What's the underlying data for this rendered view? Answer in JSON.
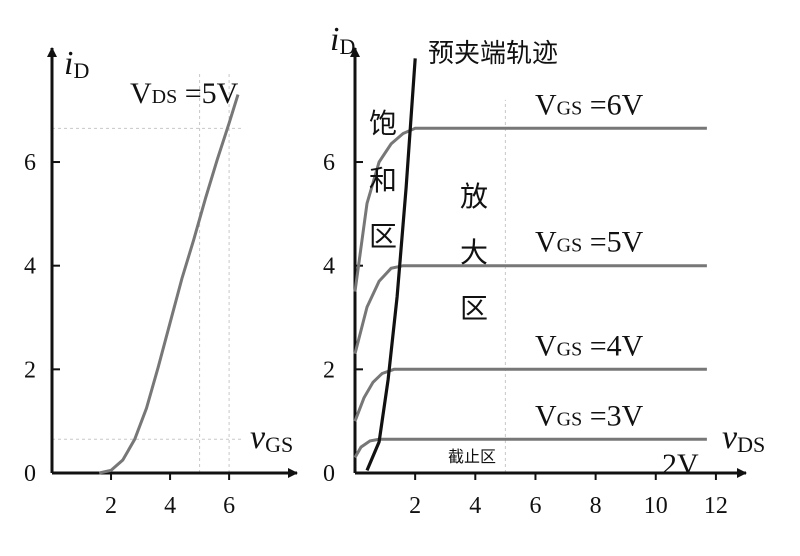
{
  "colors": {
    "axis": "#111111",
    "curve": "#777777",
    "locus": "#111111",
    "guide": "#c8c8c8"
  },
  "chart_data": [
    {
      "type": "line",
      "title": "",
      "xlabel": {
        "main": "v",
        "sub": "GS"
      },
      "ylabel": {
        "main": "i",
        "sub": "D"
      },
      "x_ticks": [
        "2",
        "4",
        "6"
      ],
      "y_ticks": [
        "0",
        "2",
        "4",
        "6"
      ],
      "xlim": [
        0,
        8.3
      ],
      "ylim": [
        0,
        8.2
      ],
      "grid": false,
      "series": [
        {
          "name": "",
          "x": [
            1.6,
            2.0,
            2.4,
            2.8,
            3.2,
            3.6,
            4.0,
            4.4,
            4.8,
            5.2,
            5.6,
            6.0,
            6.3
          ],
          "y": [
            0.0,
            0.05,
            0.25,
            0.65,
            1.25,
            2.05,
            2.9,
            3.75,
            4.5,
            5.3,
            6.05,
            6.75,
            7.3
          ]
        }
      ],
      "annotations": {
        "vds": {
          "main": "V",
          "sub": "DS",
          "rest": " =5V"
        }
      },
      "guides": {
        "x": [
          5,
          6
        ],
        "y": [
          0.65,
          6.65
        ]
      }
    },
    {
      "type": "line",
      "title": "",
      "xlabel": {
        "main": "v",
        "sub": "DS"
      },
      "ylabel": {
        "main": "i",
        "sub": "D"
      },
      "x_ticks": [
        "2",
        "4",
        "6",
        "8",
        "10",
        "12"
      ],
      "y_ticks": [
        "0",
        "2",
        "4",
        "6"
      ],
      "xlim": [
        0,
        13
      ],
      "ylim": [
        0,
        8.2
      ],
      "grid": false,
      "series": [
        {
          "name": "VGS=6V",
          "label": {
            "main": "V",
            "sub": "GS",
            "rest": " =6V"
          },
          "x": [
            0.0,
            0.4,
            0.8,
            1.2,
            1.6,
            2.0,
            11.7
          ],
          "y": [
            3.5,
            5.2,
            6.0,
            6.35,
            6.55,
            6.65,
            6.65
          ]
        },
        {
          "name": "VGS=5V",
          "label": {
            "main": "V",
            "sub": "GS",
            "rest": " =5V"
          },
          "x": [
            0.0,
            0.4,
            0.8,
            1.2,
            1.6,
            11.7
          ],
          "y": [
            2.3,
            3.2,
            3.7,
            3.95,
            4.0,
            4.0
          ]
        },
        {
          "name": "VGS=4V",
          "label": {
            "main": "V",
            "sub": "GS",
            "rest": " =4V"
          },
          "x": [
            0.0,
            0.3,
            0.6,
            0.9,
            1.3,
            11.7
          ],
          "y": [
            1.0,
            1.45,
            1.75,
            1.92,
            2.0,
            2.0
          ]
        },
        {
          "name": "VGS=3V",
          "label": {
            "main": "V",
            "sub": "GS",
            "rest": " =3V"
          },
          "x": [
            0.0,
            0.2,
            0.5,
            0.8,
            11.7
          ],
          "y": [
            0.3,
            0.5,
            0.62,
            0.65,
            0.65
          ]
        }
      ],
      "pinch_off_locus": {
        "label": "预夹端轨迹",
        "x": [
          0.4,
          0.8,
          1.1,
          1.4,
          1.7,
          2.0
        ],
        "y": [
          0.05,
          0.6,
          1.8,
          3.4,
          5.5,
          8.0
        ]
      },
      "regions": {
        "saturation": [
          "饱",
          "和",
          "区"
        ],
        "amplification": [
          "放",
          "大",
          "区"
        ],
        "cutoff": "截止区"
      },
      "annotations": {
        "two_v": "2V"
      },
      "guides": {
        "x": [
          5
        ]
      }
    }
  ]
}
